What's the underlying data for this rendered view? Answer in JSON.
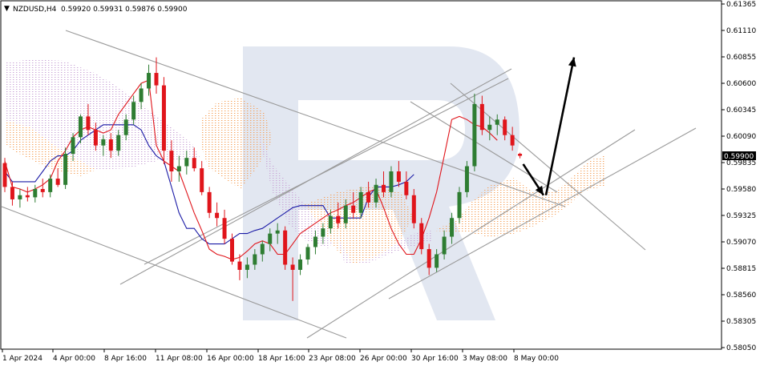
{
  "header": {
    "symbol_timeframe": "NZDUSD,H4",
    "quote": "0.59920 0.59931 0.59876 0.59900"
  },
  "price_axis": {
    "labels": [
      "0.61365",
      "0.61110",
      "0.60855",
      "0.60600",
      "0.60345",
      "0.60090",
      "0.59835",
      "0.59580",
      "0.59325",
      "0.59070",
      "0.58815",
      "0.58560",
      "0.58305",
      "0.58050"
    ],
    "current_price_label": "0.59900"
  },
  "time_axis": {
    "labels": [
      "1 Apr 2024",
      "4 Apr 00:00",
      "8 Apr 16:00",
      "11 Apr 08:00",
      "16 Apr 00:00",
      "18 Apr 16:00",
      "23 Apr 08:00",
      "26 Apr 00:00",
      "30 Apr 16:00",
      "3 May 08:00",
      "8 May 00:00"
    ]
  },
  "colors": {
    "bull_candle": "#2e7d32",
    "bear_candle": "#e0151b",
    "tenkan": "#e0151b",
    "kijun": "#1a1aa6",
    "cloud_bull": "#f5a15a",
    "cloud_bear": "#c9a4d6",
    "trendline": "#9a9a9a",
    "forecast_arrow": "#000000",
    "watermark": "#dde3ee"
  },
  "chart_data": {
    "type": "candlestick",
    "title": "NZDUSD,H4",
    "indicators": [
      "Ichimoku Kinko Hyo (Tenkan-sen, Kijun-sen, Kumo cloud)"
    ],
    "ylim": [
      0.5805,
      0.6139
    ],
    "last": {
      "open": 0.5992,
      "high": 0.59931,
      "low": 0.59876,
      "close": 0.599
    },
    "ohlc": [
      [
        0.5983,
        0.5988,
        0.5955,
        0.596
      ],
      [
        0.596,
        0.5965,
        0.5942,
        0.5948
      ],
      [
        0.5948,
        0.5958,
        0.594,
        0.5952
      ],
      [
        0.5952,
        0.596,
        0.5946,
        0.595
      ],
      [
        0.595,
        0.5962,
        0.5945,
        0.5958
      ],
      [
        0.5958,
        0.5968,
        0.595,
        0.5955
      ],
      [
        0.5955,
        0.5972,
        0.595,
        0.5968
      ],
      [
        0.5968,
        0.5978,
        0.596,
        0.5962
      ],
      [
        0.5962,
        0.5998,
        0.5958,
        0.5992
      ],
      [
        0.5992,
        0.6012,
        0.5985,
        0.6008
      ],
      [
        0.6008,
        0.603,
        0.6002,
        0.6028
      ],
      [
        0.6028,
        0.604,
        0.601,
        0.6015
      ],
      [
        0.6015,
        0.6022,
        0.5995,
        0.6
      ],
      [
        0.6,
        0.601,
        0.599,
        0.6006
      ],
      [
        0.6006,
        0.6012,
        0.5988,
        0.5995
      ],
      [
        0.5995,
        0.6015,
        0.599,
        0.601
      ],
      [
        0.601,
        0.603,
        0.6005,
        0.6025
      ],
      [
        0.6025,
        0.6048,
        0.602,
        0.6042
      ],
      [
        0.6042,
        0.606,
        0.6035,
        0.6055
      ],
      [
        0.6055,
        0.6078,
        0.6048,
        0.607
      ],
      [
        0.607,
        0.6085,
        0.605,
        0.6058
      ],
      [
        0.6058,
        0.6066,
        0.5982,
        0.5995
      ],
      [
        0.5995,
        0.6005,
        0.5965,
        0.5975
      ],
      [
        0.5975,
        0.599,
        0.5965,
        0.598
      ],
      [
        0.598,
        0.5995,
        0.5972,
        0.5988
      ],
      [
        0.5988,
        0.5998,
        0.5975,
        0.5978
      ],
      [
        0.5978,
        0.5985,
        0.5952,
        0.5955
      ],
      [
        0.5955,
        0.596,
        0.593,
        0.5935
      ],
      [
        0.5935,
        0.5945,
        0.5922,
        0.593
      ],
      [
        0.593,
        0.5938,
        0.5905,
        0.591
      ],
      [
        0.591,
        0.5915,
        0.5885,
        0.5888
      ],
      [
        0.5888,
        0.5895,
        0.587,
        0.588
      ],
      [
        0.588,
        0.5892,
        0.5872,
        0.5885
      ],
      [
        0.5885,
        0.59,
        0.588,
        0.5895
      ],
      [
        0.5895,
        0.5908,
        0.5888,
        0.5905
      ],
      [
        0.5905,
        0.592,
        0.5898,
        0.5915
      ],
      [
        0.5915,
        0.5925,
        0.5905,
        0.5918
      ],
      [
        0.5918,
        0.5922,
        0.588,
        0.5885
      ],
      [
        0.5885,
        0.5892,
        0.585,
        0.588
      ],
      [
        0.588,
        0.5895,
        0.5875,
        0.589
      ],
      [
        0.589,
        0.5905,
        0.5885,
        0.5902
      ],
      [
        0.5902,
        0.5918,
        0.5895,
        0.5912
      ],
      [
        0.5912,
        0.5925,
        0.5905,
        0.592
      ],
      [
        0.592,
        0.5938,
        0.5915,
        0.5932
      ],
      [
        0.5932,
        0.5945,
        0.592,
        0.5925
      ],
      [
        0.5925,
        0.5948,
        0.592,
        0.5942
      ],
      [
        0.5942,
        0.5955,
        0.593,
        0.5935
      ],
      [
        0.5935,
        0.596,
        0.593,
        0.5955
      ],
      [
        0.5955,
        0.5965,
        0.594,
        0.5945
      ],
      [
        0.5945,
        0.5968,
        0.594,
        0.5962
      ],
      [
        0.5962,
        0.5975,
        0.595,
        0.5955
      ],
      [
        0.5955,
        0.598,
        0.595,
        0.5975
      ],
      [
        0.5975,
        0.5985,
        0.596,
        0.5965
      ],
      [
        0.5965,
        0.5975,
        0.5948,
        0.5952
      ],
      [
        0.5952,
        0.5958,
        0.592,
        0.5925
      ],
      [
        0.5925,
        0.593,
        0.5895,
        0.59
      ],
      [
        0.59,
        0.5905,
        0.5875,
        0.5882
      ],
      [
        0.5882,
        0.59,
        0.5878,
        0.5895
      ],
      [
        0.5895,
        0.5918,
        0.589,
        0.5912
      ],
      [
        0.5912,
        0.5935,
        0.5905,
        0.593
      ],
      [
        0.593,
        0.596,
        0.5925,
        0.5955
      ],
      [
        0.5955,
        0.5985,
        0.595,
        0.598
      ],
      [
        0.598,
        0.605,
        0.5975,
        0.604
      ],
      [
        0.604,
        0.6048,
        0.601,
        0.6015
      ],
      [
        0.6015,
        0.6028,
        0.6005,
        0.602
      ],
      [
        0.602,
        0.603,
        0.601,
        0.6025
      ],
      [
        0.6025,
        0.6028,
        0.6005,
        0.601
      ],
      [
        0.601,
        0.6018,
        0.5995,
        0.6
      ],
      [
        0.5992,
        0.5993,
        0.59876,
        0.599
      ]
    ],
    "tenkan_sen": [
      0.5985,
      0.596,
      0.5958,
      0.5955,
      0.5958,
      0.5962,
      0.5968,
      0.5985,
      0.5995,
      0.6008,
      0.6015,
      0.6018,
      0.6015,
      0.6012,
      0.6015,
      0.603,
      0.604,
      0.605,
      0.606,
      0.6063,
      0.6,
      0.5985,
      0.598,
      0.5975,
      0.5955,
      0.5935,
      0.5918,
      0.59,
      0.5895,
      0.5893,
      0.589,
      0.5892,
      0.5898,
      0.5905,
      0.5908,
      0.5905,
      0.5895,
      0.5895,
      0.5905,
      0.5915,
      0.592,
      0.5925,
      0.593,
      0.5935,
      0.5938,
      0.5942,
      0.5945,
      0.595,
      0.5955,
      0.5958,
      0.594,
      0.592,
      0.5905,
      0.5895,
      0.5895,
      0.591,
      0.593,
      0.5955,
      0.599,
      0.6025,
      0.6028,
      0.6025,
      0.602,
      0.6018,
      0.6012,
      0.6005
    ],
    "kijun_sen": [
      0.5975,
      0.5965,
      0.5965,
      0.5965,
      0.5965,
      0.5975,
      0.5985,
      0.599,
      0.599,
      0.5995,
      0.6005,
      0.601,
      0.6015,
      0.602,
      0.602,
      0.602,
      0.602,
      0.602,
      0.6015,
      0.6,
      0.599,
      0.5985,
      0.596,
      0.5935,
      0.592,
      0.592,
      0.591,
      0.5905,
      0.5905,
      0.5905,
      0.591,
      0.5915,
      0.5915,
      0.5918,
      0.592,
      0.5925,
      0.593,
      0.5935,
      0.594,
      0.5942,
      0.5942,
      0.5942,
      0.5942,
      0.593,
      0.593,
      0.593,
      0.593,
      0.593,
      0.595,
      0.596,
      0.596,
      0.596,
      0.5962,
      0.5965,
      0.5972
    ],
    "forecast_arrows": [
      {
        "from": 0.5982,
        "to": 0.5952,
        "direction": "down"
      },
      {
        "from": 0.5952,
        "to": 0.6085,
        "direction": "up"
      }
    ]
  }
}
